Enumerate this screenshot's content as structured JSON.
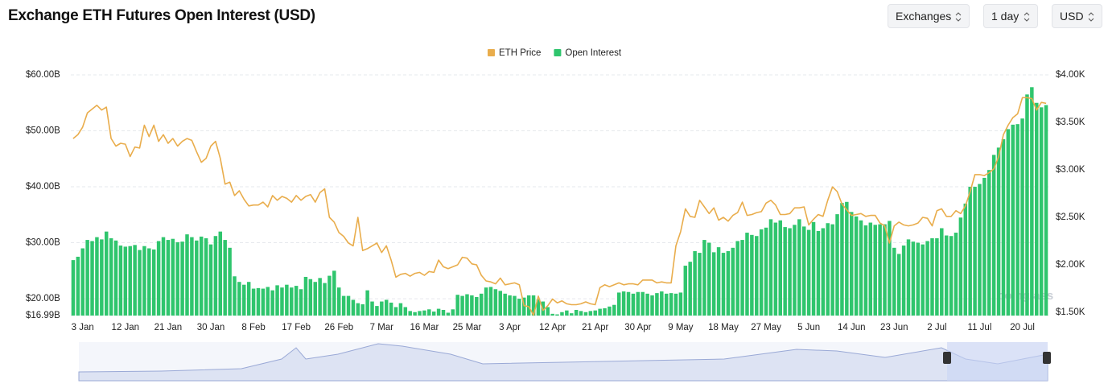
{
  "header": {
    "controls": [
      "Exchanges",
      "1 day",
      "USD"
    ]
  },
  "watermark": "coinglass",
  "chart_data": {
    "type": "combo",
    "title": "Exchange ETH Futures Open Interest (USD)",
    "categories": [
      null,
      null,
      "3 Jan",
      null,
      null,
      null,
      null,
      null,
      null,
      null,
      null,
      "12 Jan",
      null,
      null,
      null,
      null,
      null,
      null,
      null,
      null,
      "21 Jan",
      null,
      null,
      null,
      null,
      null,
      null,
      null,
      null,
      "30 Jan",
      null,
      null,
      null,
      null,
      null,
      null,
      null,
      null,
      "8 Feb",
      null,
      null,
      null,
      null,
      null,
      null,
      null,
      null,
      "17 Feb",
      null,
      null,
      null,
      null,
      null,
      null,
      null,
      null,
      "26 Feb",
      null,
      null,
      null,
      null,
      null,
      null,
      null,
      null,
      "7 Mar",
      null,
      null,
      null,
      null,
      null,
      null,
      null,
      null,
      "16 Mar",
      null,
      null,
      null,
      null,
      null,
      null,
      null,
      null,
      "25 Mar",
      null,
      null,
      null,
      null,
      null,
      null,
      null,
      null,
      "3 Apr",
      null,
      null,
      null,
      null,
      null,
      null,
      null,
      null,
      "12 Apr",
      null,
      null,
      null,
      null,
      null,
      null,
      null,
      null,
      "21 Apr",
      null,
      null,
      null,
      null,
      null,
      null,
      null,
      null,
      "30 Apr",
      null,
      null,
      null,
      null,
      null,
      null,
      null,
      null,
      "9 May",
      null,
      null,
      null,
      null,
      null,
      null,
      null,
      null,
      "18 May",
      null,
      null,
      null,
      null,
      null,
      null,
      null,
      null,
      "27 May",
      null,
      null,
      null,
      null,
      null,
      null,
      null,
      null,
      "5 Jun",
      null,
      null,
      null,
      null,
      null,
      null,
      null,
      null,
      "14 Jun",
      null,
      null,
      null,
      null,
      null,
      null,
      null,
      null,
      "23 Jun",
      null,
      null,
      null,
      null,
      null,
      null,
      null,
      null,
      "2 Jul",
      null,
      null,
      null,
      null,
      null,
      null,
      null,
      null,
      "11 Jul",
      null,
      null,
      null,
      null,
      null,
      null,
      null,
      null,
      "20 Jul",
      null,
      null,
      null,
      null,
      null
    ],
    "series": [
      {
        "name": "ETH Price",
        "type": "line",
        "axis": "y2",
        "color": "#e9ad4c",
        "values": [
          3330,
          3370,
          3450,
          3600,
          3640,
          3680,
          3630,
          3660,
          3330,
          3250,
          3280,
          3270,
          3140,
          3240,
          3230,
          3470,
          3350,
          3470,
          3300,
          3370,
          3280,
          3330,
          3250,
          3300,
          3330,
          3310,
          3190,
          3080,
          3120,
          3250,
          3300,
          3120,
          2850,
          2870,
          2730,
          2780,
          2690,
          2620,
          2630,
          2630,
          2660,
          2610,
          2730,
          2680,
          2720,
          2700,
          2660,
          2730,
          2680,
          2720,
          2740,
          2660,
          2760,
          2800,
          2500,
          2450,
          2340,
          2300,
          2230,
          2200,
          2500,
          2150,
          2170,
          2200,
          2230,
          2130,
          2200,
          2050,
          1870,
          1900,
          1910,
          1880,
          1910,
          1920,
          1890,
          1930,
          1920,
          2050,
          1980,
          1960,
          1980,
          2000,
          2080,
          2070,
          2010,
          2000,
          1890,
          1830,
          1820,
          1800,
          1860,
          1790,
          1800,
          1810,
          1790,
          1570,
          1560,
          1470,
          1670,
          1520,
          1570,
          1640,
          1600,
          1620,
          1590,
          1580,
          1580,
          1590,
          1610,
          1590,
          1580,
          1760,
          1790,
          1770,
          1790,
          1810,
          1790,
          1800,
          1800,
          1790,
          1840,
          1840,
          1840,
          1810,
          1820,
          1810,
          1810,
          2200,
          2350,
          2590,
          2510,
          2500,
          2680,
          2610,
          2540,
          2600,
          2470,
          2500,
          2460,
          2520,
          2550,
          2660,
          2520,
          2530,
          2550,
          2560,
          2650,
          2680,
          2630,
          2530,
          2530,
          2540,
          2600,
          2600,
          2610,
          2420,
          2480,
          2530,
          2510,
          2680,
          2820,
          2770,
          2640,
          2580,
          2520,
          2530,
          2540,
          2510,
          2520,
          2520,
          2440,
          2410,
          2230,
          2410,
          2450,
          2420,
          2410,
          2420,
          2440,
          2500,
          2490,
          2410,
          2570,
          2590,
          2510,
          2510,
          2570,
          2540,
          2620,
          2770,
          2950,
          2950,
          2940,
          2970,
          3010,
          3140,
          3370,
          3470,
          3550,
          3590,
          3760,
          3760,
          3750,
          3630,
          3710,
          3700
        ]
      },
      {
        "name": "Open Interest",
        "type": "bar",
        "axis": "y",
        "color": "#2fc56d",
        "values": [
          26.9,
          27.5,
          29.0,
          30.5,
          30.3,
          31.0,
          30.6,
          32.0,
          30.8,
          30.4,
          29.5,
          29.3,
          29.4,
          29.6,
          28.7,
          29.4,
          29.0,
          28.8,
          30.3,
          31.0,
          30.5,
          30.7,
          30.1,
          30.2,
          31.5,
          31.0,
          30.4,
          31.1,
          30.8,
          29.7,
          31.2,
          32.0,
          30.5,
          29.1,
          24.0,
          23.0,
          22.5,
          23.0,
          21.8,
          21.9,
          21.8,
          22.1,
          21.5,
          22.4,
          22.0,
          22.5,
          22.0,
          22.3,
          21.7,
          23.9,
          23.5,
          23.0,
          23.7,
          22.8,
          24.1,
          25.0,
          22.0,
          20.5,
          20.5,
          19.8,
          19.2,
          19.0,
          21.5,
          19.5,
          18.7,
          19.5,
          19.8,
          19.3,
          18.5,
          19.2,
          18.5,
          17.8,
          17.6,
          17.8,
          17.9,
          18.1,
          17.7,
          18.2,
          18.0,
          17.5,
          18.1,
          20.7,
          20.5,
          20.8,
          20.6,
          20.3,
          20.9,
          22.0,
          22.1,
          21.7,
          21.4,
          20.9,
          20.6,
          20.5,
          20.0,
          20.2,
          20.6,
          20.6,
          19.9,
          19.5,
          18.5,
          17.3,
          17.2,
          17.6,
          17.9,
          17.4,
          18.0,
          17.8,
          17.6,
          17.8,
          17.9,
          18.2,
          18.3,
          18.6,
          18.9,
          21.1,
          21.3,
          21.2,
          20.9,
          21.2,
          21.2,
          20.9,
          20.6,
          21.0,
          21.3,
          20.9,
          21.0,
          20.9,
          21.1,
          25.9,
          26.6,
          28.5,
          28.2,
          30.5,
          30.0,
          28.3,
          29.2,
          28.2,
          28.5,
          29.1,
          30.3,
          30.5,
          31.8,
          31.4,
          31.2,
          32.4,
          32.7,
          34.2,
          33.6,
          34.0,
          32.8,
          32.6,
          33.2,
          34.2,
          32.9,
          32.3,
          33.7,
          32.1,
          32.6,
          33.5,
          33.3,
          35.1,
          37.1,
          37.3,
          35.5,
          34.7,
          34.0,
          33.1,
          33.6,
          33.2,
          33.3,
          33.3,
          33.9,
          29.1,
          28.0,
          29.5,
          30.6,
          30.2,
          30.0,
          29.7,
          30.3,
          30.8,
          30.8,
          32.6,
          31.3,
          31.2,
          31.8,
          34.5,
          37.0,
          40.0,
          40.0,
          40.5,
          41.6,
          43.0,
          45.7,
          47.0,
          48.5,
          50.3,
          51.1,
          51.2,
          52.2,
          56.5,
          57.8,
          55.0,
          54.2,
          54.6
        ]
      }
    ],
    "ylim": [
      16.99,
      60
    ],
    "yticks": [
      {
        "value": 16.99,
        "label": "$16.99B"
      },
      {
        "value": 20,
        "label": "$20.00B"
      },
      {
        "value": 30,
        "label": "$30.00B"
      },
      {
        "value": 40,
        "label": "$40.00B"
      },
      {
        "value": 50,
        "label": "$50.00B"
      },
      {
        "value": 60,
        "label": "$60.00B"
      }
    ],
    "y2lim": [
      1466,
      4000
    ],
    "y2ticks": [
      {
        "value": 1500,
        "label": "$1.50K"
      },
      {
        "value": 2000,
        "label": "$2.00K"
      },
      {
        "value": 2500,
        "label": "$2.50K"
      },
      {
        "value": 3000,
        "label": "$3.00K"
      },
      {
        "value": 3500,
        "label": "$3.50K"
      },
      {
        "value": 4000,
        "label": "$4.00K"
      }
    ],
    "grid": true,
    "legend": "top"
  }
}
